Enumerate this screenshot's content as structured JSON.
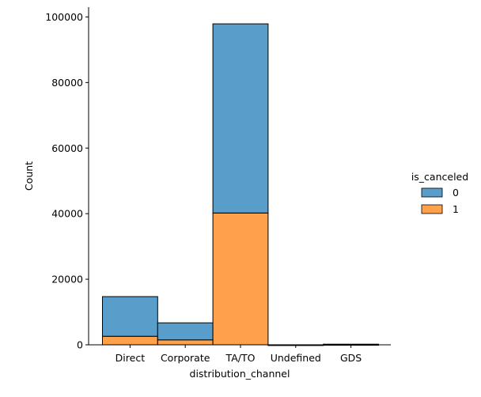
{
  "chart_data": {
    "type": "bar",
    "stacked": true,
    "categories": [
      "Direct",
      "Corporate",
      "TA/TO",
      "Undefined",
      "GDS"
    ],
    "series": [
      {
        "name": "0",
        "color": "#599dcb",
        "values": [
          12100,
          5200,
          57700,
          4,
          130
        ]
      },
      {
        "name": "1",
        "color": "#ffa14a",
        "values": [
          2600,
          1500,
          40200,
          1,
          60
        ]
      }
    ],
    "xlabel": "distribution_channel",
    "ylabel": "Count",
    "ylim": [
      0,
      103000
    ],
    "yticks": [
      0,
      20000,
      40000,
      60000,
      80000,
      100000
    ],
    "ytick_labels": [
      "0",
      "20000",
      "40000",
      "60000",
      "80000",
      "100000"
    ],
    "legend": {
      "title": "is_canceled",
      "placement": "right",
      "labels": [
        "0",
        "1"
      ]
    },
    "grid": false
  }
}
